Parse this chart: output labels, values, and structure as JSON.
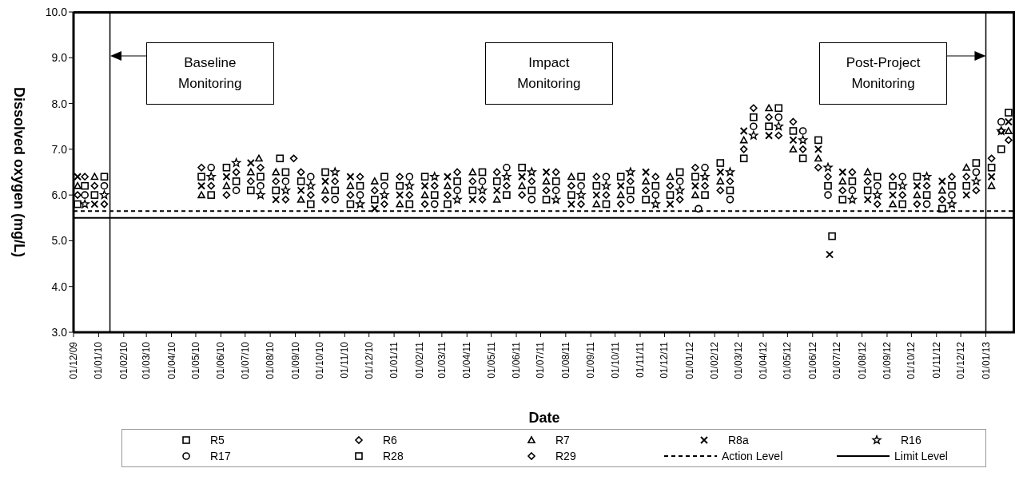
{
  "chart_data": {
    "type": "scatter",
    "xlabel": "Date",
    "ylabel": "Dissolved oxygen (mg/L)",
    "x": [
      "2009-12-06",
      "2009-12-27",
      "2010-05-08",
      "2010-06-08",
      "2010-07-08",
      "2010-08-08",
      "2010-09-08",
      "2010-10-08",
      "2010-11-08",
      "2010-12-08",
      "2011-01-08",
      "2011-02-08",
      "2011-03-08",
      "2011-04-08",
      "2011-05-08",
      "2011-06-08",
      "2011-07-08",
      "2011-08-08",
      "2011-09-08",
      "2011-10-08",
      "2011-11-08",
      "2011-12-08",
      "2012-01-08",
      "2012-02-08",
      "2012-03-08",
      "2012-04-08",
      "2012-05-08",
      "2012-06-08",
      "2012-07-08",
      "2012-08-08",
      "2012-09-08",
      "2012-10-08",
      "2012-11-08",
      "2012-12-08",
      "2013-01-08",
      "2013-01-29"
    ],
    "series": [
      {
        "name": "R5",
        "color": "#000000",
        "marker": "square",
        "values": [
          5.8,
          6.0,
          6.4,
          6.6,
          6.1,
          6.1,
          6.3,
          6.5,
          5.8,
          5.9,
          6.2,
          6.4,
          5.8,
          6.1,
          6.3,
          6.6,
          5.9,
          6.0,
          6.2,
          6.4,
          5.9,
          6.0,
          6.4,
          6.7,
          6.8,
          7.5,
          7.4,
          7.2,
          5.9,
          6.1,
          6.2,
          6.4,
          5.7,
          6.2,
          6.6,
          7.8
        ]
      },
      {
        "name": "R6",
        "color": "#000000",
        "marker": "diamond",
        "values": [
          6.0,
          6.2,
          6.6,
          6.0,
          6.3,
          6.3,
          6.5,
          5.9,
          6.0,
          6.1,
          6.4,
          5.8,
          6.0,
          6.3,
          6.5,
          6.0,
          6.1,
          6.2,
          6.4,
          5.8,
          6.1,
          6.2,
          6.6,
          6.1,
          7.0,
          7.7,
          7.6,
          6.6,
          6.1,
          6.3,
          6.4,
          5.8,
          5.9,
          6.4,
          6.8,
          7.2
        ]
      },
      {
        "name": "R7",
        "color": "#000000",
        "marker": "triangle",
        "x": [
          "2009-12-06",
          "2009-12-27",
          "2010-05-08",
          "2010-06-08",
          "2010-07-08",
          "2010-07-18",
          "2010-08-08",
          "2010-09-08",
          "2010-10-08",
          "2010-11-08",
          "2010-12-08",
          "2011-01-08",
          "2011-02-08",
          "2011-03-08",
          "2011-04-08",
          "2011-05-08",
          "2011-06-08",
          "2011-07-08",
          "2011-08-08",
          "2011-09-08",
          "2011-10-08",
          "2011-11-08",
          "2011-12-08",
          "2012-01-08",
          "2012-02-08",
          "2012-03-08",
          "2012-04-08",
          "2012-05-08",
          "2012-06-08",
          "2012-07-08",
          "2012-08-08",
          "2012-09-08",
          "2012-10-08",
          "2012-11-08",
          "2012-12-08",
          "2013-01-08",
          "2013-01-29"
        ],
        "values": [
          6.2,
          6.4,
          6.0,
          6.2,
          6.5,
          6.8,
          6.5,
          5.9,
          6.1,
          6.2,
          6.3,
          5.8,
          6.0,
          6.2,
          6.5,
          5.9,
          6.2,
          6.3,
          6.4,
          5.8,
          6.0,
          6.3,
          6.4,
          6.0,
          6.3,
          7.2,
          7.9,
          7.0,
          6.8,
          6.3,
          6.5,
          5.8,
          6.0,
          6.1,
          6.6,
          6.2,
          7.4
        ]
      },
      {
        "name": "R8a",
        "color": "#000000",
        "marker": "cross",
        "x": [
          "2009-12-06",
          "2009-12-27",
          "2010-05-08",
          "2010-06-08",
          "2010-07-08",
          "2010-08-08",
          "2010-09-08",
          "2010-10-08",
          "2010-11-08",
          "2010-12-08",
          "2011-01-08",
          "2011-02-08",
          "2011-03-08",
          "2011-04-08",
          "2011-05-08",
          "2011-06-08",
          "2011-07-08",
          "2011-08-08",
          "2011-09-08",
          "2011-10-08",
          "2011-11-08",
          "2011-12-08",
          "2012-01-08",
          "2012-02-08",
          "2012-03-08",
          "2012-04-08",
          "2012-05-08",
          "2012-06-08",
          "2012-06-22",
          "2012-07-08",
          "2012-08-08",
          "2012-09-08",
          "2012-10-08",
          "2012-11-08",
          "2012-12-08",
          "2013-01-08",
          "2013-01-29"
        ],
        "values": [
          6.4,
          5.8,
          6.2,
          6.4,
          6.7,
          5.9,
          6.1,
          6.3,
          6.4,
          5.7,
          6.0,
          6.2,
          6.4,
          5.9,
          6.1,
          6.4,
          6.5,
          5.8,
          6.0,
          6.2,
          6.5,
          5.8,
          6.2,
          6.5,
          7.4,
          7.3,
          7.2,
          7.0,
          4.7,
          6.5,
          5.9,
          6.0,
          6.2,
          6.3,
          6.0,
          6.4,
          7.6
        ]
      },
      {
        "name": "R16",
        "color": "#000000",
        "marker": "star",
        "x": [
          "2009-12-15",
          "2010-01-08",
          "2010-05-20",
          "2010-06-20",
          "2010-07-20",
          "2010-08-20",
          "2010-09-20",
          "2010-10-20",
          "2010-11-20",
          "2010-12-20",
          "2011-01-20",
          "2011-02-20",
          "2011-03-20",
          "2011-04-20",
          "2011-05-20",
          "2011-06-20",
          "2011-07-20",
          "2011-08-20",
          "2011-09-20",
          "2011-10-20",
          "2011-11-20",
          "2011-12-20",
          "2012-01-20",
          "2012-02-20",
          "2012-03-20",
          "2012-04-20",
          "2012-05-20",
          "2012-06-20",
          "2012-07-20",
          "2012-08-20",
          "2012-09-20",
          "2012-10-20",
          "2012-11-20",
          "2012-12-20",
          "2013-01-20"
        ],
        "values": [
          5.8,
          6.0,
          6.4,
          6.7,
          6.0,
          6.1,
          6.2,
          6.5,
          5.8,
          6.0,
          6.2,
          6.4,
          5.9,
          6.1,
          6.4,
          6.5,
          5.9,
          6.0,
          6.2,
          6.5,
          5.8,
          6.1,
          6.4,
          6.5,
          7.3,
          7.5,
          7.2,
          6.6,
          5.9,
          6.0,
          6.2,
          6.4,
          5.8,
          6.3,
          7.4
        ]
      },
      {
        "name": "R17",
        "color": "#000000",
        "marker": "circle",
        "x": [
          "2009-12-15",
          "2010-01-08",
          "2010-05-20",
          "2010-06-20",
          "2010-07-20",
          "2010-08-20",
          "2010-09-20",
          "2010-10-20",
          "2010-11-20",
          "2010-12-20",
          "2011-01-20",
          "2011-02-20",
          "2011-03-20",
          "2011-04-20",
          "2011-05-20",
          "2011-06-20",
          "2011-07-20",
          "2011-08-20",
          "2011-09-20",
          "2011-10-20",
          "2011-11-20",
          "2011-12-20",
          "2012-01-12",
          "2012-01-20",
          "2012-02-20",
          "2012-03-20",
          "2012-04-20",
          "2012-05-20",
          "2012-06-20",
          "2012-07-20",
          "2012-08-20",
          "2012-09-20",
          "2012-10-20",
          "2012-11-20",
          "2012-12-20",
          "2013-01-20"
        ],
        "values": [
          6.0,
          6.2,
          6.6,
          6.1,
          6.2,
          6.3,
          6.4,
          5.9,
          6.0,
          6.2,
          6.4,
          5.8,
          6.1,
          6.3,
          6.6,
          5.9,
          6.1,
          6.2,
          6.4,
          5.9,
          6.0,
          6.3,
          5.7,
          6.6,
          5.9,
          7.5,
          7.7,
          7.4,
          6.0,
          6.1,
          6.2,
          6.4,
          5.8,
          6.0,
          6.5,
          7.6
        ]
      },
      {
        "name": "R28",
        "color": "#000000",
        "marker": "square",
        "x": [
          "2009-12-15",
          "2010-01-08",
          "2010-05-20",
          "2010-06-20",
          "2010-07-20",
          "2010-08-13",
          "2010-08-20",
          "2010-09-20",
          "2010-10-20",
          "2010-11-20",
          "2010-12-20",
          "2011-01-20",
          "2011-02-20",
          "2011-03-20",
          "2011-04-20",
          "2011-05-20",
          "2011-06-20",
          "2011-07-20",
          "2011-08-20",
          "2011-09-20",
          "2011-10-20",
          "2011-11-20",
          "2011-12-20",
          "2012-01-20",
          "2012-02-20",
          "2012-03-20",
          "2012-04-20",
          "2012-05-20",
          "2012-06-20",
          "2012-06-25",
          "2012-07-20",
          "2012-08-20",
          "2012-09-20",
          "2012-10-20",
          "2012-11-20",
          "2012-12-20",
          "2013-01-20"
        ],
        "values": [
          6.2,
          6.4,
          6.0,
          6.3,
          6.4,
          6.8,
          6.5,
          5.8,
          6.1,
          6.2,
          6.4,
          5.8,
          6.0,
          6.3,
          6.5,
          6.0,
          6.1,
          6.3,
          6.4,
          5.8,
          6.1,
          6.2,
          6.5,
          6.0,
          6.1,
          7.7,
          7.9,
          6.8,
          6.2,
          5.1,
          6.3,
          6.4,
          5.8,
          6.0,
          6.2,
          6.7,
          7.0
        ]
      },
      {
        "name": "R29",
        "color": "#000000",
        "marker": "diamond",
        "x": [
          "2009-12-15",
          "2010-01-08",
          "2010-05-20",
          "2010-06-20",
          "2010-07-20",
          "2010-08-20",
          "2010-08-30",
          "2010-09-20",
          "2010-10-20",
          "2010-11-20",
          "2010-12-20",
          "2011-01-20",
          "2011-02-20",
          "2011-03-20",
          "2011-04-20",
          "2011-05-20",
          "2011-06-20",
          "2011-07-20",
          "2011-08-20",
          "2011-09-20",
          "2011-10-20",
          "2011-11-20",
          "2011-12-20",
          "2012-01-20",
          "2012-02-20",
          "2012-03-20",
          "2012-04-20",
          "2012-05-20",
          "2012-06-20",
          "2012-07-20",
          "2012-08-20",
          "2012-09-20",
          "2012-10-20",
          "2012-11-20",
          "2012-12-20",
          "2013-01-20"
        ],
        "values": [
          6.4,
          5.8,
          6.2,
          6.5,
          6.6,
          5.9,
          6.8,
          6.0,
          6.3,
          6.4,
          5.8,
          6.0,
          6.2,
          6.5,
          5.9,
          6.2,
          6.3,
          6.5,
          5.8,
          6.0,
          6.3,
          6.4,
          5.9,
          6.2,
          6.3,
          7.9,
          7.3,
          7.0,
          6.4,
          6.5,
          5.8,
          6.0,
          6.2,
          6.4,
          6.1,
          7.4
        ]
      }
    ],
    "xlim": [
      "2009-12-01",
      "2013-02-06"
    ],
    "xticks": [
      {
        "value": "2009-12-01",
        "label": "01/12/09"
      },
      {
        "value": "2010-01-01",
        "label": "01/01/10"
      },
      {
        "value": "2010-02-01",
        "label": "01/02/10"
      },
      {
        "value": "2010-03-01",
        "label": "01/03/10"
      },
      {
        "value": "2010-04-01",
        "label": "01/04/10"
      },
      {
        "value": "2010-05-01",
        "label": "01/05/10"
      },
      {
        "value": "2010-06-01",
        "label": "01/06/10"
      },
      {
        "value": "2010-07-01",
        "label": "01/07/10"
      },
      {
        "value": "2010-08-01",
        "label": "01/08/10"
      },
      {
        "value": "2010-09-01",
        "label": "01/09/10"
      },
      {
        "value": "2010-10-01",
        "label": "01/10/10"
      },
      {
        "value": "2010-11-01",
        "label": "01/11/10"
      },
      {
        "value": "2010-12-01",
        "label": "01/12/10"
      },
      {
        "value": "2011-01-01",
        "label": "01/01/11"
      },
      {
        "value": "2011-02-01",
        "label": "01/02/11"
      },
      {
        "value": "2011-03-01",
        "label": "01/03/11"
      },
      {
        "value": "2011-04-01",
        "label": "01/04/11"
      },
      {
        "value": "2011-05-01",
        "label": "01/05/11"
      },
      {
        "value": "2011-06-01",
        "label": "01/06/11"
      },
      {
        "value": "2011-07-01",
        "label": "01/07/11"
      },
      {
        "value": "2011-08-01",
        "label": "01/08/11"
      },
      {
        "value": "2011-09-01",
        "label": "01/09/11"
      },
      {
        "value": "2011-10-01",
        "label": "01/10/11"
      },
      {
        "value": "2011-11-01",
        "label": "01/11/11"
      },
      {
        "value": "2011-12-01",
        "label": "01/12/11"
      },
      {
        "value": "2012-01-01",
        "label": "01/01/12"
      },
      {
        "value": "2012-02-01",
        "label": "01/02/12"
      },
      {
        "value": "2012-03-01",
        "label": "01/03/12"
      },
      {
        "value": "2012-04-01",
        "label": "01/04/12"
      },
      {
        "value": "2012-05-01",
        "label": "01/05/12"
      },
      {
        "value": "2012-06-01",
        "label": "01/06/12"
      },
      {
        "value": "2012-07-01",
        "label": "01/07/12"
      },
      {
        "value": "2012-08-01",
        "label": "01/08/12"
      },
      {
        "value": "2012-09-01",
        "label": "01/09/12"
      },
      {
        "value": "2012-10-01",
        "label": "01/10/12"
      },
      {
        "value": "2012-11-01",
        "label": "01/11/12"
      },
      {
        "value": "2012-12-01",
        "label": "01/12/12"
      },
      {
        "value": "2013-01-01",
        "label": "01/01/13"
      }
    ],
    "ylim": [
      3,
      10
    ],
    "yticks": [
      {
        "value": 3,
        "label": "3.0"
      },
      {
        "value": 4,
        "label": "4.0"
      },
      {
        "value": 5,
        "label": "5.0"
      },
      {
        "value": 6,
        "label": "6.0"
      },
      {
        "value": 7,
        "label": "7.0"
      },
      {
        "value": 8,
        "label": "8.0"
      },
      {
        "value": 9,
        "label": "9.0"
      },
      {
        "value": 10,
        "label": "10.0"
      }
    ],
    "ref_lines": [
      {
        "axis": "y",
        "value": 5.65,
        "label": "Action Level",
        "color": "#000000",
        "line_style": "dashed"
      },
      {
        "axis": "y",
        "value": 5.5,
        "label": "Limit Level",
        "color": "#000000",
        "line_style": "solid"
      },
      {
        "axis": "x",
        "value": "2010-01-15",
        "color": "#000000",
        "line_style": "solid"
      },
      {
        "axis": "x",
        "value": "2013-01-01",
        "color": "#000000",
        "line_style": "solid"
      }
    ],
    "annotations": [
      "Baseline Monitoring",
      "Impact Monitoring",
      "Post-Project Monitoring"
    ],
    "legend": "bottom",
    "grid": false
  }
}
